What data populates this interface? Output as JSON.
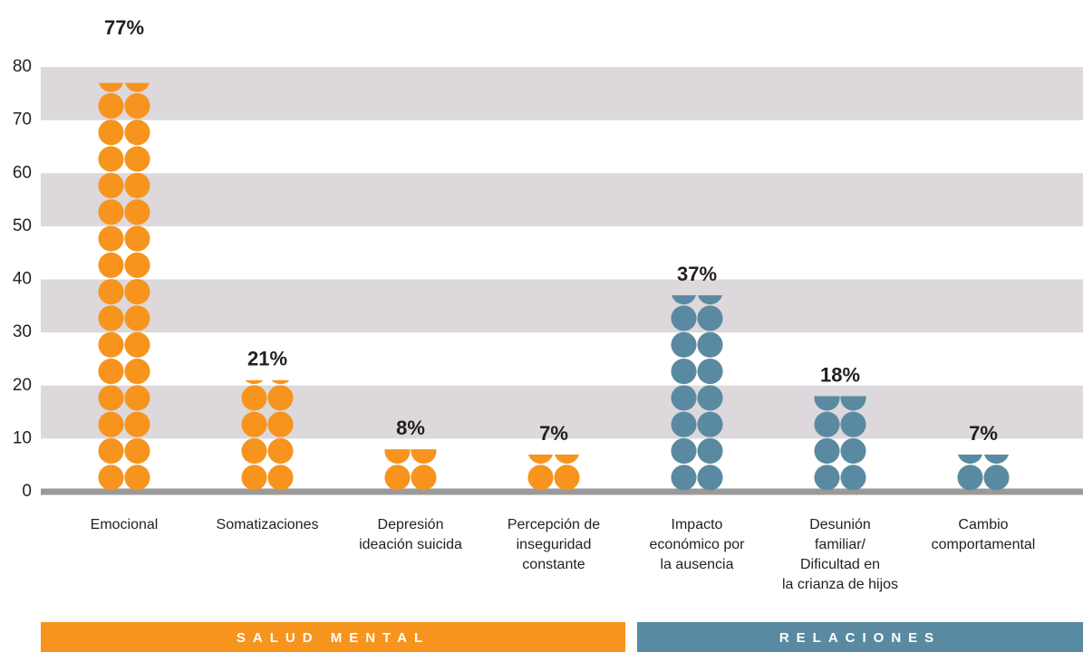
{
  "chart_data": {
    "type": "dot-column",
    "categories": [
      "Emocional",
      "Somatizaciones",
      "Depresión\nideación suicida",
      "Percepción de\ninseguridad\nconstante",
      "Impacto\neconómico por\nla ausencia",
      "Desunión\nfamiliar/\nDificultad en\nla crianza de hijos",
      "Cambio\ncomportamental"
    ],
    "series": [
      {
        "name": "SALUD MENTAL",
        "color": "#f7941d",
        "values": [
          77,
          21,
          8,
          7,
          null,
          null,
          null
        ],
        "value_labels": [
          "77%",
          "21%",
          "8%",
          "7%",
          null,
          null,
          null
        ]
      },
      {
        "name": "RELACIONES",
        "color": "#5a8aa2",
        "values": [
          null,
          null,
          null,
          null,
          37,
          18,
          7
        ],
        "value_labels": [
          null,
          null,
          null,
          null,
          "37%",
          "18%",
          "7%"
        ]
      }
    ],
    "ylim": [
      0,
      80
    ],
    "yticks": [
      0,
      10,
      20,
      30,
      40,
      50,
      60,
      70,
      80
    ],
    "grid": true
  }
}
